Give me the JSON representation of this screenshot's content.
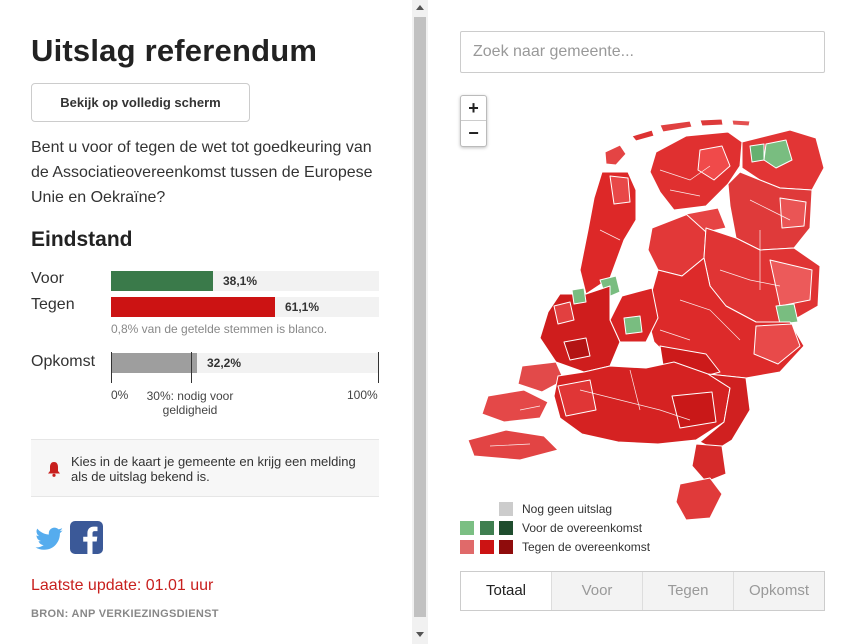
{
  "title": "Uitslag referendum",
  "fullscreen_label": "Bekijk op volledig scherm",
  "question": "Bent u voor of tegen de wet tot goedkeuring van de Associatieovereenkomst tussen de Europese Unie en Oekraïne?",
  "result_heading": "Eindstand",
  "results": [
    {
      "label": "Voor",
      "value_text": "38,1%",
      "fraction": 0.381,
      "color": "#3a7a4a"
    },
    {
      "label": "Tegen",
      "value_text": "61,1%",
      "fraction": 0.611,
      "color": "#cc1313"
    }
  ],
  "blanco_note": "0,8% van de getelde stemmen is blanco.",
  "turnout": {
    "label": "Opkomst",
    "value_text": "32,2%",
    "fraction": 0.322,
    "color": "#9e9e9e",
    "axis_min": "0%",
    "axis_max": "100%",
    "threshold_fraction": 0.3,
    "threshold_label": "30%: nodig voor geldigheid"
  },
  "notification": "Kies in de kaart je gemeente en krijg een melding als de uitslag bekend is.",
  "share": {
    "twitter": "twitter-icon",
    "facebook": "facebook-icon"
  },
  "last_update": "Laatste update: 01.01 uur",
  "source": "BRON: ANP VERKIEZINGSDIENST",
  "search": {
    "placeholder": "Zoek naar gemeente..."
  },
  "zoom": {
    "in": "+",
    "out": "−"
  },
  "legend": [
    {
      "label": "Nog geen uitslag",
      "colors": [
        "#cccccc"
      ]
    },
    {
      "label": "Voor de overeenkomst",
      "colors": [
        "#7bbf83",
        "#3f7f50",
        "#1f4d2e"
      ]
    },
    {
      "label": "Tegen de overeenkomst",
      "colors": [
        "#e06a6a",
        "#cc1313",
        "#8f0c0c"
      ]
    }
  ],
  "tabs": [
    "Totaal",
    "Voor",
    "Tegen",
    "Opkomst"
  ],
  "colors": {
    "accent_red": "#c8201e",
    "twitter": "#55acee",
    "facebook": "#3b5998"
  }
}
